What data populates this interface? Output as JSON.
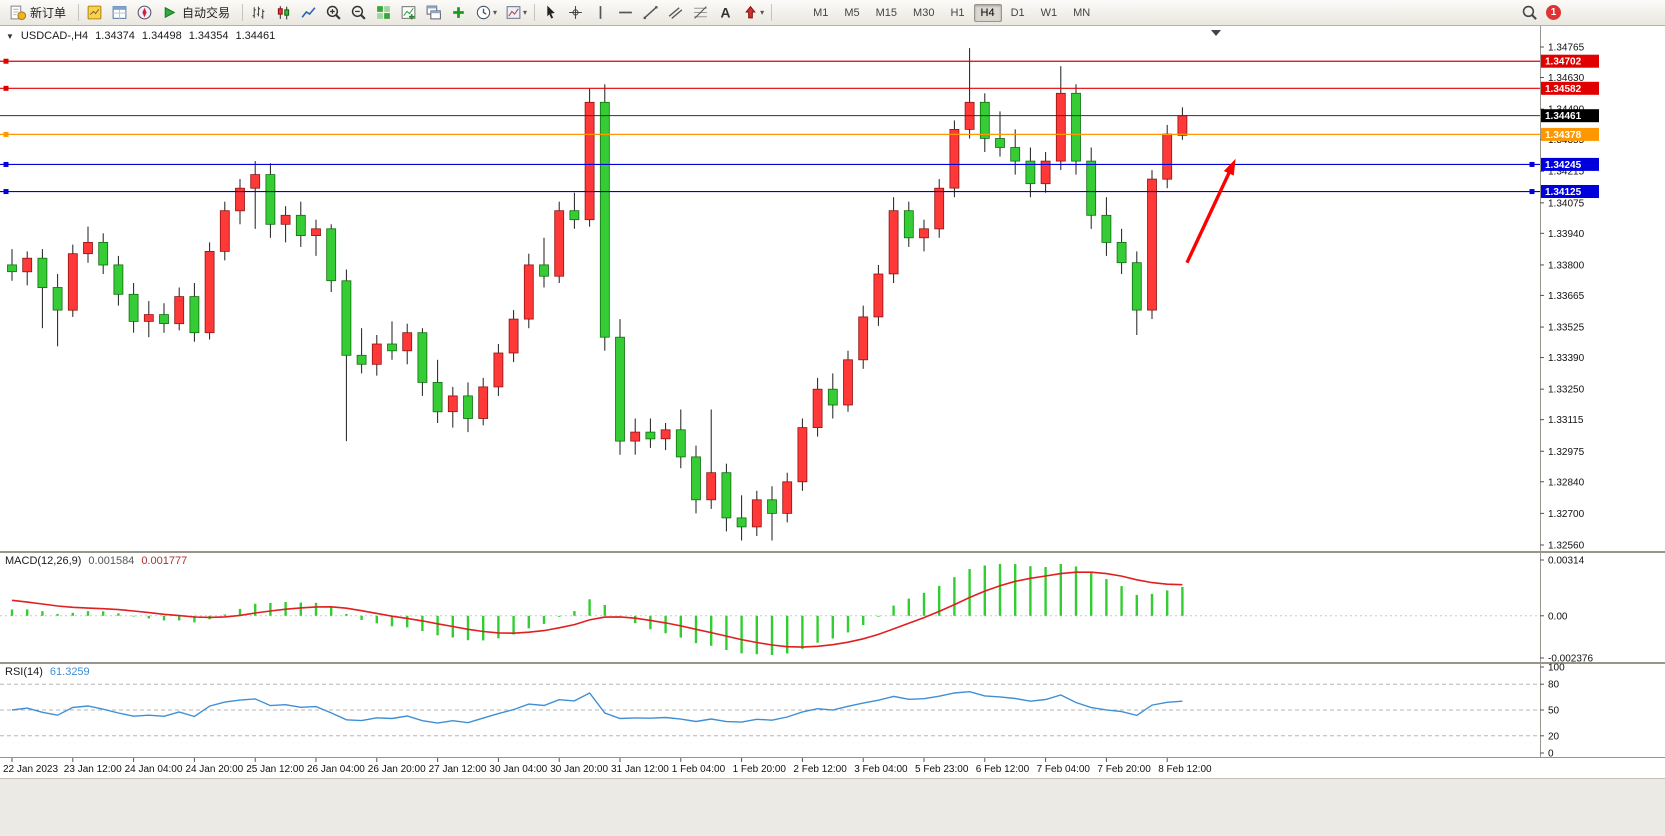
{
  "toolbar": {
    "new_order_label": "新订单",
    "autotrading_label": "自动交易",
    "icons_left": [
      {
        "name": "market-watch"
      },
      {
        "name": "data-window"
      },
      {
        "name": "navigator"
      }
    ],
    "icons_chart": [
      {
        "name": "bar-chart"
      },
      {
        "name": "candle-chart"
      },
      {
        "name": "line-chart"
      },
      {
        "name": "zoom-in"
      },
      {
        "name": "zoom-out"
      },
      {
        "name": "tile-windows"
      },
      {
        "name": "new-chart"
      },
      {
        "name": "cascade-windows"
      },
      {
        "name": "add-indicator"
      },
      {
        "name": "periods",
        "caret": true
      },
      {
        "name": "template",
        "caret": true
      }
    ],
    "icons_tools": [
      {
        "name": "cursor"
      },
      {
        "name": "crosshair"
      },
      {
        "name": "vertical-line"
      },
      {
        "name": "horizontal-line"
      },
      {
        "name": "trendline"
      },
      {
        "name": "channel"
      },
      {
        "name": "fibonacci"
      },
      {
        "name": "text"
      },
      {
        "name": "arrows",
        "caret": true
      }
    ],
    "timeframes": [
      "M1",
      "M5",
      "M15",
      "M30",
      "H1",
      "H4",
      "D1",
      "W1",
      "MN"
    ],
    "active_timeframe": "H4",
    "notification_count": "1"
  },
  "chart": {
    "symbol_period": "USDCAD-,H4",
    "open": "1.34374",
    "high": "1.34498",
    "low": "1.34354",
    "close": "1.34461"
  },
  "indicators": {
    "macd": {
      "title": "MACD(12,26,9)",
      "value_main": "0.001584",
      "value_signal": "0.001777",
      "axis_labels": [
        "0.00314",
        "0.00",
        "-0.002376"
      ],
      "histogram_color": "#32cd32",
      "signal_color": "#e02020"
    },
    "rsi": {
      "title": "RSI(14)",
      "value": "61.3259",
      "levels": [
        80,
        50,
        20
      ],
      "axis_labels": [
        "100",
        "80",
        "50",
        "20",
        "0"
      ],
      "line_color": "#3f8fd6"
    }
  },
  "chart_data": {
    "type": "candlestick",
    "symbol": "USDCAD",
    "timeframe": "H4",
    "bull_color": "#ff3838",
    "bear_color": "#35cc35",
    "price_axis": {
      "min": 1.3256,
      "max": 1.34765,
      "labels": [
        "1.34765",
        "1.34630",
        "1.34490",
        "1.34355",
        "1.34215",
        "1.34075",
        "1.33940",
        "1.33800",
        "1.33665",
        "1.33525",
        "1.33390",
        "1.33250",
        "1.33115",
        "1.32975",
        "1.32840",
        "1.32700",
        "1.32560"
      ]
    },
    "time_axis": {
      "candles_per_label": 4,
      "labels": [
        "22 Jan 2023",
        "23 Jan 12:00",
        "24 Jan 04:00",
        "24 Jan 20:00",
        "25 Jan 12:00",
        "26 Jan 04:00",
        "26 Jan 20:00",
        "27 Jan 12:00",
        "30 Jan 04:00",
        "30 Jan 20:00",
        "31 Jan 12:00",
        "1 Feb 04:00",
        "1 Feb 20:00",
        "2 Feb 12:00",
        "3 Feb 04:00",
        "5 Feb 23:00",
        "6 Feb 12:00",
        "7 Feb 04:00",
        "7 Feb 20:00",
        "8 Feb 12:00"
      ]
    },
    "candles": [
      [
        1.338,
        1.3387,
        1.3373,
        1.3377
      ],
      [
        1.3377,
        1.3386,
        1.3371,
        1.3383
      ],
      [
        1.3383,
        1.3387,
        1.3352,
        1.337
      ],
      [
        1.337,
        1.3376,
        1.3344,
        1.336
      ],
      [
        1.336,
        1.3389,
        1.3357,
        1.3385
      ],
      [
        1.3385,
        1.3397,
        1.3381,
        1.339
      ],
      [
        1.339,
        1.3394,
        1.3376,
        1.338
      ],
      [
        1.338,
        1.3384,
        1.3362,
        1.3367
      ],
      [
        1.3367,
        1.3372,
        1.335,
        1.3355
      ],
      [
        1.3355,
        1.3364,
        1.3348,
        1.3358
      ],
      [
        1.3358,
        1.3363,
        1.335,
        1.3354
      ],
      [
        1.3354,
        1.337,
        1.3351,
        1.3366
      ],
      [
        1.3366,
        1.3372,
        1.3346,
        1.335
      ],
      [
        1.335,
        1.339,
        1.3347,
        1.3386
      ],
      [
        1.3386,
        1.3408,
        1.3382,
        1.3404
      ],
      [
        1.3404,
        1.3418,
        1.3398,
        1.3414
      ],
      [
        1.3414,
        1.3426,
        1.3396,
        1.342
      ],
      [
        1.342,
        1.3425,
        1.3392,
        1.3398
      ],
      [
        1.3398,
        1.3406,
        1.339,
        1.3402
      ],
      [
        1.3402,
        1.3408,
        1.3388,
        1.3393
      ],
      [
        1.3393,
        1.34,
        1.3384,
        1.3396
      ],
      [
        1.3396,
        1.3398,
        1.3368,
        1.3373
      ],
      [
        1.3373,
        1.3378,
        1.3302,
        1.334
      ],
      [
        1.334,
        1.3352,
        1.3332,
        1.3336
      ],
      [
        1.3336,
        1.3349,
        1.3331,
        1.3345
      ],
      [
        1.3345,
        1.3355,
        1.3338,
        1.3342
      ],
      [
        1.3342,
        1.3354,
        1.3336,
        1.335
      ],
      [
        1.335,
        1.3352,
        1.3322,
        1.3328
      ],
      [
        1.3328,
        1.3338,
        1.331,
        1.3315
      ],
      [
        1.3315,
        1.3326,
        1.3308,
        1.3322
      ],
      [
        1.3322,
        1.3328,
        1.3306,
        1.3312
      ],
      [
        1.3312,
        1.333,
        1.3309,
        1.3326
      ],
      [
        1.3326,
        1.3345,
        1.3322,
        1.3341
      ],
      [
        1.3341,
        1.336,
        1.3337,
        1.3356
      ],
      [
        1.3356,
        1.3385,
        1.3352,
        1.338
      ],
      [
        1.338,
        1.3392,
        1.337,
        1.3375
      ],
      [
        1.3375,
        1.3408,
        1.3372,
        1.3404
      ],
      [
        1.3404,
        1.3412,
        1.3396,
        1.34
      ],
      [
        1.34,
        1.3458,
        1.3397,
        1.3452
      ],
      [
        1.3452,
        1.346,
        1.3342,
        1.3348
      ],
      [
        1.3348,
        1.3356,
        1.3296,
        1.3302
      ],
      [
        1.3302,
        1.3312,
        1.3296,
        1.3306
      ],
      [
        1.3306,
        1.3312,
        1.3299,
        1.3303
      ],
      [
        1.3303,
        1.331,
        1.3298,
        1.3307
      ],
      [
        1.3307,
        1.3316,
        1.329,
        1.3295
      ],
      [
        1.3295,
        1.33,
        1.327,
        1.3276
      ],
      [
        1.3276,
        1.3316,
        1.3272,
        1.3288
      ],
      [
        1.3288,
        1.3292,
        1.3262,
        1.3268
      ],
      [
        1.3268,
        1.3278,
        1.3258,
        1.3264
      ],
      [
        1.3264,
        1.328,
        1.326,
        1.3276
      ],
      [
        1.3276,
        1.3282,
        1.3258,
        1.327
      ],
      [
        1.327,
        1.3288,
        1.3266,
        1.3284
      ],
      [
        1.3284,
        1.3312,
        1.328,
        1.3308
      ],
      [
        1.3308,
        1.333,
        1.3304,
        1.3325
      ],
      [
        1.3325,
        1.3332,
        1.3312,
        1.3318
      ],
      [
        1.3318,
        1.3342,
        1.3315,
        1.3338
      ],
      [
        1.3338,
        1.3362,
        1.3334,
        1.3357
      ],
      [
        1.3357,
        1.338,
        1.3353,
        1.3376
      ],
      [
        1.3376,
        1.341,
        1.3372,
        1.3404
      ],
      [
        1.3404,
        1.3408,
        1.3388,
        1.3392
      ],
      [
        1.3392,
        1.34,
        1.3386,
        1.3396
      ],
      [
        1.3396,
        1.3418,
        1.3392,
        1.3414
      ],
      [
        1.3414,
        1.3444,
        1.341,
        1.344
      ],
      [
        1.344,
        1.3476,
        1.3436,
        1.3452
      ],
      [
        1.3452,
        1.3456,
        1.343,
        1.3436
      ],
      [
        1.3436,
        1.3448,
        1.3428,
        1.3432
      ],
      [
        1.3432,
        1.344,
        1.342,
        1.3426
      ],
      [
        1.3426,
        1.3432,
        1.341,
        1.3416
      ],
      [
        1.3416,
        1.343,
        1.3412,
        1.3426
      ],
      [
        1.3426,
        1.3468,
        1.3422,
        1.3456
      ],
      [
        1.3456,
        1.346,
        1.342,
        1.3426
      ],
      [
        1.3426,
        1.3432,
        1.3396,
        1.3402
      ],
      [
        1.3402,
        1.341,
        1.3384,
        1.339
      ],
      [
        1.339,
        1.3396,
        1.3376,
        1.3381
      ],
      [
        1.3381,
        1.3386,
        1.3349,
        1.336
      ],
      [
        1.336,
        1.3422,
        1.3356,
        1.3418
      ],
      [
        1.3418,
        1.3442,
        1.3414,
        1.3438
      ],
      [
        1.34374,
        1.34498,
        1.34354,
        1.34461
      ]
    ],
    "hlines": [
      {
        "price": 1.34702,
        "label": "1.34702",
        "color": "#e00000",
        "handles": [
          "left"
        ]
      },
      {
        "price": 1.34582,
        "label": "1.34582",
        "color": "#e00000",
        "handles": [
          "left"
        ]
      },
      {
        "price": 1.34378,
        "label": "1.34378",
        "color": "#ff9800",
        "handles": [
          "left"
        ]
      },
      {
        "price": 1.34245,
        "label": "1.34245",
        "color": "#0000dd",
        "handles": [
          "left",
          "right"
        ]
      },
      {
        "price": 1.34125,
        "label": "1.34125",
        "color": "#0000dd",
        "handles": [
          "left",
          "right"
        ]
      }
    ],
    "current_price": {
      "value": 1.34461,
      "label": "1.34461",
      "color": "#000000"
    },
    "annotations": [
      {
        "type": "arrow",
        "color": "#ff0000",
        "from": {
          "candle": 77.3,
          "price": 1.3381
        },
        "to": {
          "candle": 80.5,
          "price": 1.3427
        }
      }
    ]
  }
}
